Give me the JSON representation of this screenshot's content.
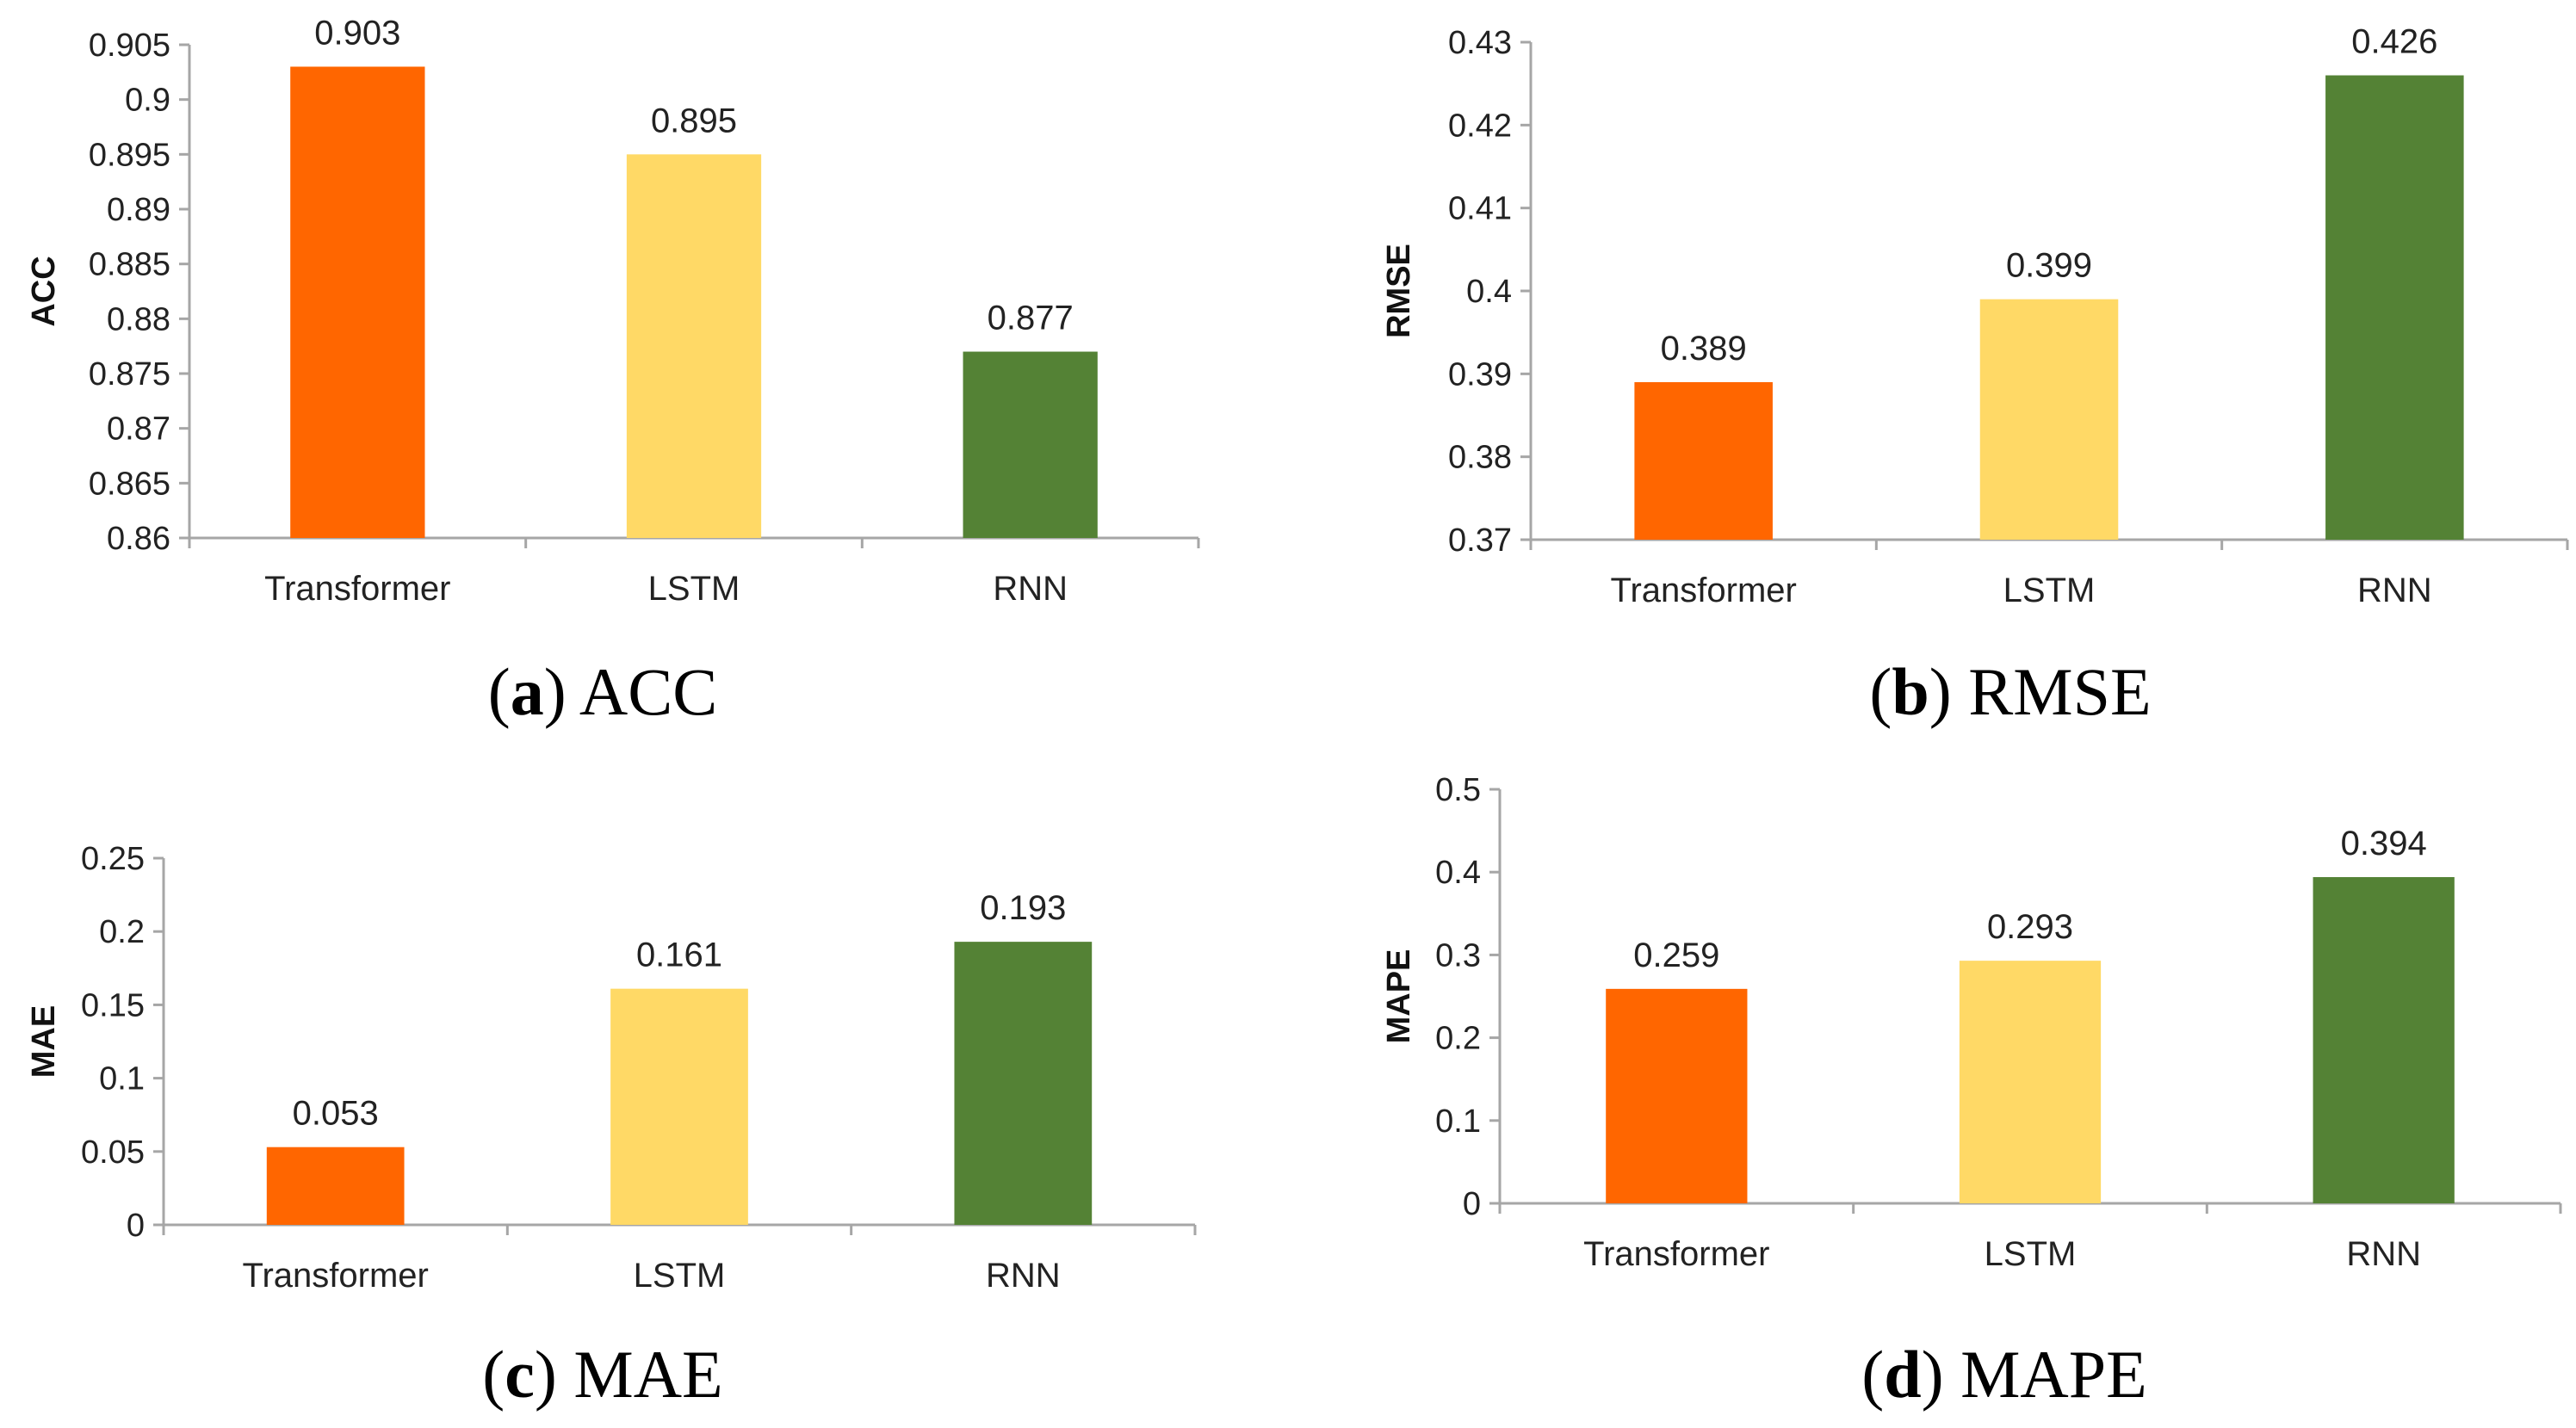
{
  "chart_data": [
    {
      "id": "a",
      "type": "bar",
      "caption_letter": "a",
      "caption_text": "ACC",
      "ylabel": "ACC",
      "categories": [
        "Transformer",
        "LSTM",
        "RNN"
      ],
      "values": [
        0.903,
        0.895,
        0.877
      ],
      "value_labels": [
        "0.903",
        "0.895",
        "0.877"
      ],
      "ylim": [
        0.86,
        0.905
      ],
      "yticks": [
        "0.86",
        "0.865",
        "0.87",
        "0.875",
        "0.88",
        "0.885",
        "0.89",
        "0.895",
        "0.9",
        "0.905"
      ],
      "colors": [
        "#ff6600",
        "#ffd966",
        "#548235"
      ],
      "grid": false
    },
    {
      "id": "b",
      "type": "bar",
      "caption_letter": "b",
      "caption_text": "RMSE",
      "ylabel": "RMSE",
      "categories": [
        "Transformer",
        "LSTM",
        "RNN"
      ],
      "values": [
        0.389,
        0.399,
        0.426
      ],
      "value_labels": [
        "0.389",
        "0.399",
        "0.426"
      ],
      "ylim": [
        0.37,
        0.43
      ],
      "yticks": [
        "0.37",
        "0.38",
        "0.39",
        "0.4",
        "0.41",
        "0.42",
        "0.43"
      ],
      "colors": [
        "#ff6600",
        "#ffd966",
        "#548235"
      ],
      "grid": false
    },
    {
      "id": "c",
      "type": "bar",
      "caption_letter": "c",
      "caption_text": "MAE",
      "ylabel": "MAE",
      "categories": [
        "Transformer",
        "LSTM",
        "RNN"
      ],
      "values": [
        0.053,
        0.161,
        0.193
      ],
      "value_labels": [
        "0.053",
        "0.161",
        "0.193"
      ],
      "ylim": [
        0,
        0.25
      ],
      "yticks": [
        "0",
        "0.05",
        "0.1",
        "0.15",
        "0.2",
        "0.25"
      ],
      "colors": [
        "#ff6600",
        "#ffd966",
        "#548235"
      ],
      "grid": false
    },
    {
      "id": "d",
      "type": "bar",
      "caption_letter": "d",
      "caption_text": "MAPE",
      "ylabel": "MAPE",
      "categories": [
        "Transformer",
        "LSTM",
        "RNN"
      ],
      "values": [
        0.259,
        0.293,
        0.394
      ],
      "value_labels": [
        "0.259",
        "0.293",
        "0.394"
      ],
      "ylim": [
        0,
        0.5
      ],
      "yticks": [
        "0",
        "0.1",
        "0.2",
        "0.3",
        "0.4",
        "0.5"
      ],
      "colors": [
        "#ff6600",
        "#ffd966",
        "#548235"
      ],
      "grid": false
    }
  ]
}
